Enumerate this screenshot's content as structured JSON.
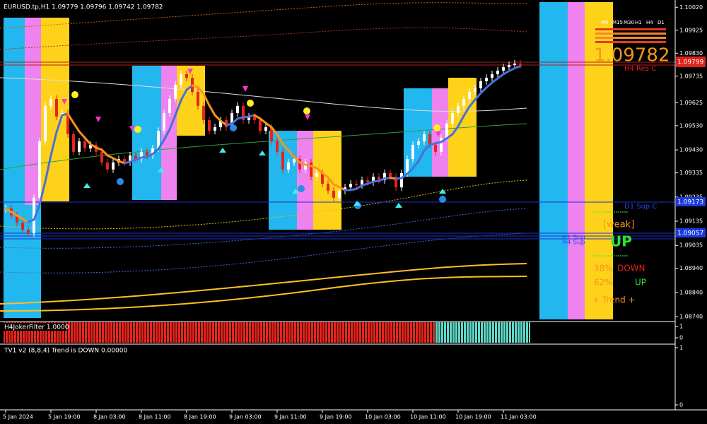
{
  "header": {
    "symbol_info": "EURUSD.tp,H1  1.09779 1.09796 1.09742 1.09782"
  },
  "chart_data": {
    "type": "candlestick",
    "categories": [
      "5 Jan 2024",
      null,
      null,
      null,
      null,
      null,
      null,
      null,
      "5 Jan 19:00",
      null,
      null,
      null,
      null,
      null,
      null,
      null,
      "8 Jan 03:00",
      null,
      null,
      null,
      null,
      null,
      null,
      null,
      "8 Jan 11:00",
      null,
      null,
      null,
      null,
      null,
      null,
      null,
      "8 Jan 19:00",
      null,
      null,
      null,
      null,
      null,
      null,
      null,
      "9 Jan 03:00",
      null,
      null,
      null,
      null,
      null,
      null,
      null,
      "9 Jan 11:00",
      null,
      null,
      null,
      null,
      null,
      null,
      null,
      "9 Jan 19:00",
      null,
      null,
      null,
      null,
      null,
      null,
      null,
      "10 Jan 03:00",
      null,
      null,
      null,
      null,
      null,
      null,
      null,
      "10 Jan 11:00",
      null,
      null,
      null,
      null,
      null,
      null,
      null,
      "10 Jan 19:00",
      null,
      null,
      null,
      null,
      null,
      null,
      null,
      "11 Jan 03:00",
      null,
      null,
      null
    ],
    "values": [
      1.09188,
      1.09159,
      1.09129,
      1.091,
      1.09085,
      1.09232,
      1.09465,
      1.09612,
      1.09641,
      1.09568,
      1.09582,
      1.09495,
      1.09422,
      1.09465,
      1.09436,
      1.09451,
      1.09422,
      1.09378,
      1.09349,
      1.09378,
      1.09392,
      1.09378,
      1.09407,
      1.09392,
      1.09422,
      1.09407,
      1.09436,
      1.09509,
      1.09582,
      1.09641,
      1.09699,
      1.09743,
      1.09728,
      1.0967,
      1.09612,
      1.09553,
      1.09509,
      1.09524,
      1.09553,
      1.09524,
      1.09582,
      1.09612,
      1.09553,
      1.09568,
      1.09553,
      1.09509,
      1.09524,
      1.09465,
      1.09422,
      1.09349,
      1.09378,
      1.09392,
      1.09349,
      1.09378,
      1.09319,
      1.09334,
      1.0929,
      1.09261,
      1.09232,
      1.09261,
      1.09275,
      1.0929,
      1.09284,
      1.09305,
      1.09296,
      1.09319,
      1.09305,
      1.09334,
      1.09319,
      1.09275,
      1.09334,
      1.09392,
      1.09451,
      1.09465,
      1.09495,
      1.09451,
      1.09422,
      1.0948,
      1.09539,
      1.09582,
      1.09612,
      1.09641,
      1.0967,
      1.09685,
      1.09714,
      1.09728,
      1.09743,
      1.09758,
      1.09772,
      1.09781,
      1.09787,
      1.09782
    ],
    "up_color": "#ffffff",
    "down_color": "#e8231b",
    "ylim": [
      1.0872,
      1.1005
    ],
    "yticks": [
      {
        "value": 1.1002,
        "label": "1.10020"
      },
      {
        "value": 1.09925,
        "label": "1.09925"
      },
      {
        "value": 1.0983,
        "label": "1.09830"
      },
      {
        "value": 1.09735,
        "label": "1.09735"
      },
      {
        "value": 1.09625,
        "label": "1.09625"
      },
      {
        "value": 1.0953,
        "label": "1.09530"
      },
      {
        "value": 1.0943,
        "label": "1.09430"
      },
      {
        "value": 1.09335,
        "label": "1.09335"
      },
      {
        "value": 1.09235,
        "label": "1.09235"
      },
      {
        "value": 1.09135,
        "label": "1.09135"
      },
      {
        "value": 1.09035,
        "label": "1.09035"
      },
      {
        "value": 1.0894,
        "label": "1.08940"
      },
      {
        "value": 1.0884,
        "label": "1.08840"
      },
      {
        "value": 1.0874,
        "label": "1.08740"
      }
    ]
  },
  "overlay": {
    "big_price": "1.09782",
    "price_box": "1.09799",
    "h4_res": "H4 Res C",
    "d1_sup": "D1 Sup C",
    "sup_box_1": "1.09173",
    "sup_box_2": "1.09057",
    "h1_sup": "H1 Sup",
    "h4_sup": "H4 Sup",
    "strength": "[weak]",
    "direction": "UP",
    "down_pct": "38%",
    "down_label": "DOWN",
    "up_pct": "62%",
    "up_label": "UP",
    "trend": "+  Trend  +",
    "timeframes": [
      "M5",
      "M15",
      "M30",
      "H1",
      "H4",
      "D1"
    ]
  },
  "panels": [
    {
      "title": "H4JokerFilter 1.0000",
      "yticks": [
        1,
        0
      ]
    },
    {
      "title": "TV1 v2 (8,8,4) Trend is DOWN 0.00000",
      "yticks": [
        1,
        0
      ]
    }
  ]
}
